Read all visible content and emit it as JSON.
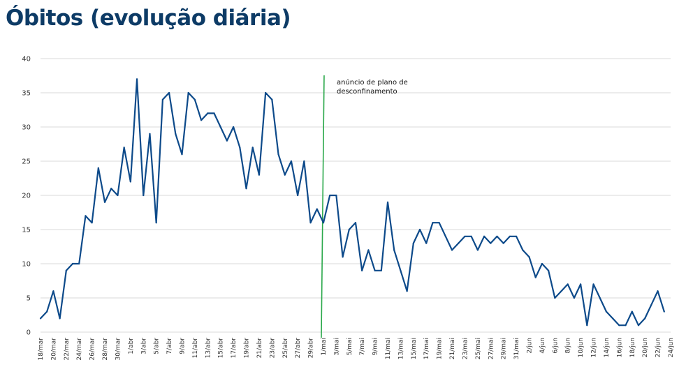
{
  "title": "Óbitos (evolução diária)",
  "colors": {
    "title": "#0d3b66",
    "series": "#0d4a8a",
    "marker": "#2aa84a",
    "grid": "#d9d9d9"
  },
  "chart_data": {
    "type": "line",
    "title": "Óbitos (evolução diária)",
    "xlabel": "",
    "ylabel": "",
    "ylim": [
      0,
      40
    ],
    "yticks": [
      0,
      5,
      10,
      15,
      20,
      25,
      30,
      35,
      40
    ],
    "grid": true,
    "xtick_labels": [
      "18/mar",
      "20/mar",
      "22/mar",
      "24/mar",
      "26/mar",
      "28/mar",
      "30/mar",
      "1/abr",
      "3/abr",
      "5/abr",
      "7/abr",
      "9/abr",
      "11/abr",
      "13/abr",
      "15/abr",
      "17/abr",
      "19/abr",
      "21/abr",
      "23/abr",
      "25/abr",
      "27/abr",
      "29/abr",
      "1/mai",
      "3/mai",
      "5/mai",
      "7/mai",
      "9/mai",
      "11/mai",
      "13/mai",
      "15/mai",
      "17/mai",
      "19/mai",
      "21/mai",
      "23/mai",
      "25/mai",
      "27/mai",
      "29/mai",
      "31/mai",
      "2/jun",
      "4/jun",
      "6/jun",
      "8/jun",
      "10/jun",
      "12/jun",
      "14/jun",
      "16/jun",
      "18/jun",
      "20/jun",
      "22/jun",
      "24/jun"
    ],
    "x_start": "18/mar",
    "series": [
      {
        "values": [
          2,
          3,
          6,
          2,
          9,
          10,
          10,
          17,
          16,
          24,
          19,
          21,
          20,
          27,
          22,
          37,
          20,
          29,
          16,
          34,
          35,
          29,
          26,
          35,
          34,
          31,
          32,
          32,
          30,
          28,
          30,
          27,
          21,
          27,
          23,
          35,
          34,
          26,
          23,
          25,
          20,
          25,
          16,
          18,
          16,
          20,
          20,
          11,
          15,
          16,
          9,
          12,
          9,
          9,
          19,
          12,
          9,
          6,
          13,
          15,
          13,
          16,
          16,
          14,
          12,
          13,
          14,
          14,
          12,
          14,
          13,
          14,
          13,
          14,
          14,
          12,
          11,
          8,
          10,
          9,
          5,
          6,
          7,
          5,
          7,
          1,
          7,
          5,
          3,
          2,
          1,
          1,
          3,
          1,
          2,
          4,
          6,
          3
        ]
      }
    ],
    "annotation": {
      "text_lines": [
        "anúncio de plano de",
        "desconfinamento"
      ],
      "x": "1/mai"
    }
  }
}
